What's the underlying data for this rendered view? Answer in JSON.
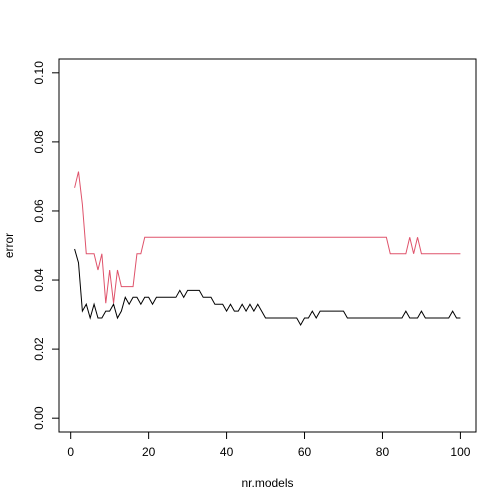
{
  "chart_data": {
    "type": "line",
    "title": "",
    "xlabel": "nr.models",
    "ylabel": "error",
    "xlim": [
      -3,
      104
    ],
    "ylim": [
      -0.004,
      0.104
    ],
    "xticks": [
      0,
      20,
      40,
      60,
      80,
      100
    ],
    "xtick_labels": [
      "0",
      "20",
      "40",
      "60",
      "80",
      "100"
    ],
    "yticks": [
      0.0,
      0.02,
      0.04,
      0.06,
      0.08,
      0.1
    ],
    "ytick_labels": [
      "0.00",
      "0.02",
      "0.04",
      "0.06",
      "0.08",
      "0.10"
    ],
    "grid": false,
    "legend": "none",
    "series": [
      {
        "color": "#000000",
        "x": [
          1,
          2,
          3,
          4,
          5,
          6,
          7,
          8,
          9,
          10,
          11,
          12,
          13,
          14,
          15,
          16,
          17,
          18,
          19,
          20,
          21,
          22,
          23,
          24,
          25,
          26,
          27,
          28,
          29,
          30,
          31,
          32,
          33,
          34,
          35,
          36,
          37,
          38,
          39,
          40,
          41,
          42,
          43,
          44,
          45,
          46,
          47,
          48,
          49,
          50,
          51,
          52,
          53,
          54,
          55,
          56,
          57,
          58,
          59,
          60,
          61,
          62,
          63,
          64,
          65,
          66,
          67,
          68,
          69,
          70,
          71,
          72,
          73,
          74,
          75,
          76,
          77,
          78,
          79,
          80,
          81,
          82,
          83,
          84,
          85,
          86,
          87,
          88,
          89,
          90,
          91,
          92,
          93,
          94,
          95,
          96,
          97,
          98,
          99,
          100
        ],
        "values": [
          0.049,
          0.045,
          0.031,
          0.033,
          0.029,
          0.033,
          0.029,
          0.029,
          0.031,
          0.031,
          0.033,
          0.029,
          0.031,
          0.035,
          0.033,
          0.035,
          0.035,
          0.033,
          0.035,
          0.035,
          0.033,
          0.035,
          0.035,
          0.035,
          0.035,
          0.035,
          0.035,
          0.037,
          0.035,
          0.037,
          0.037,
          0.037,
          0.037,
          0.035,
          0.035,
          0.035,
          0.033,
          0.033,
          0.033,
          0.031,
          0.033,
          0.031,
          0.031,
          0.033,
          0.031,
          0.033,
          0.031,
          0.033,
          0.031,
          0.029,
          0.029,
          0.029,
          0.029,
          0.029,
          0.029,
          0.029,
          0.029,
          0.029,
          0.027,
          0.029,
          0.029,
          0.031,
          0.029,
          0.031,
          0.031,
          0.031,
          0.031,
          0.031,
          0.031,
          0.031,
          0.029,
          0.029,
          0.029,
          0.029,
          0.029,
          0.029,
          0.029,
          0.029,
          0.029,
          0.029,
          0.029,
          0.029,
          0.029,
          0.029,
          0.029,
          0.031,
          0.029,
          0.029,
          0.029,
          0.031,
          0.029,
          0.029,
          0.029,
          0.029,
          0.029,
          0.029,
          0.029,
          0.031,
          0.029,
          0.029
        ]
      },
      {
        "color": "#df536b",
        "x": [
          1,
          2,
          3,
          4,
          5,
          6,
          7,
          8,
          9,
          10,
          11,
          12,
          13,
          14,
          15,
          16,
          17,
          18,
          19,
          20,
          21,
          22,
          23,
          24,
          25,
          26,
          27,
          28,
          29,
          30,
          31,
          32,
          33,
          34,
          35,
          36,
          37,
          38,
          39,
          40,
          41,
          42,
          43,
          44,
          45,
          46,
          47,
          48,
          49,
          50,
          51,
          52,
          53,
          54,
          55,
          56,
          57,
          58,
          59,
          60,
          61,
          62,
          63,
          64,
          65,
          66,
          67,
          68,
          69,
          70,
          71,
          72,
          73,
          74,
          75,
          76,
          77,
          78,
          79,
          80,
          81,
          82,
          83,
          84,
          85,
          86,
          87,
          88,
          89,
          90,
          91,
          92,
          93,
          94,
          95,
          96,
          97,
          98,
          99,
          100
        ],
        "values": [
          0.0667,
          0.0714,
          0.0619,
          0.0476,
          0.0476,
          0.0476,
          0.0429,
          0.0476,
          0.0333,
          0.0429,
          0.0333,
          0.0429,
          0.0381,
          0.0381,
          0.0381,
          0.0381,
          0.0476,
          0.0476,
          0.0524,
          0.0524,
          0.0524,
          0.0524,
          0.0524,
          0.0524,
          0.0524,
          0.0524,
          0.0524,
          0.0524,
          0.0524,
          0.0524,
          0.0524,
          0.0524,
          0.0524,
          0.0524,
          0.0524,
          0.0524,
          0.0524,
          0.0524,
          0.0524,
          0.0524,
          0.0524,
          0.0524,
          0.0524,
          0.0524,
          0.0524,
          0.0524,
          0.0524,
          0.0524,
          0.0524,
          0.0524,
          0.0524,
          0.0524,
          0.0524,
          0.0524,
          0.0524,
          0.0524,
          0.0524,
          0.0524,
          0.0524,
          0.0524,
          0.0524,
          0.0524,
          0.0524,
          0.0524,
          0.0524,
          0.0524,
          0.0524,
          0.0524,
          0.0524,
          0.0524,
          0.0524,
          0.0524,
          0.0524,
          0.0524,
          0.0524,
          0.0524,
          0.0524,
          0.0524,
          0.0524,
          0.0524,
          0.0524,
          0.0476,
          0.0476,
          0.0476,
          0.0476,
          0.0476,
          0.0524,
          0.0476,
          0.0524,
          0.0476,
          0.0476,
          0.0476,
          0.0476,
          0.0476,
          0.0476,
          0.0476,
          0.0476,
          0.0476,
          0.0476,
          0.0476
        ]
      }
    ]
  }
}
